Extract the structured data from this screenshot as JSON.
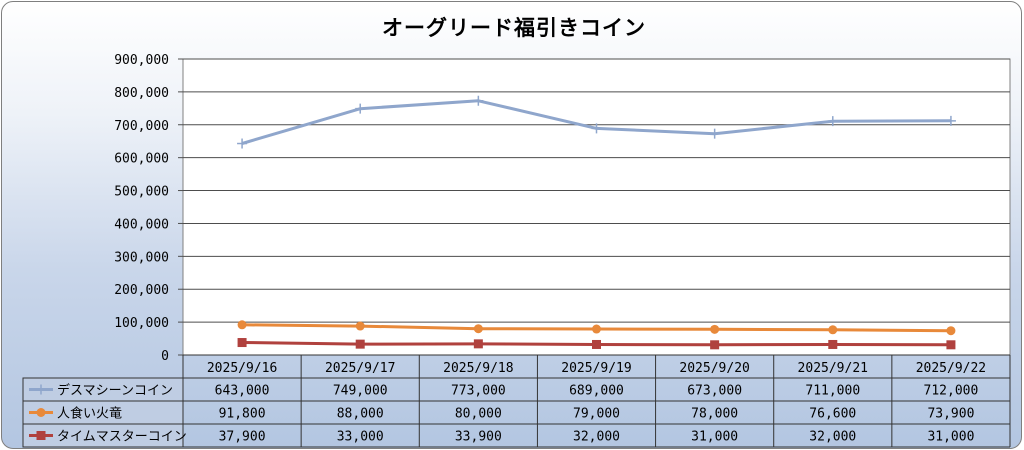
{
  "chart_data": {
    "type": "line",
    "title": "オーグリード福引きコイン",
    "categories": [
      "2025/9/16",
      "2025/9/17",
      "2025/9/18",
      "2025/9/19",
      "2025/9/20",
      "2025/9/21",
      "2025/9/22"
    ],
    "ylim": [
      0,
      900000
    ],
    "y_ticks": [
      "0",
      "100,000",
      "200,000",
      "300,000",
      "400,000",
      "500,000",
      "600,000",
      "700,000",
      "800,000",
      "900,000"
    ],
    "grid": true,
    "legend": "data-table",
    "series": [
      {
        "name": "デスマシーンコイン",
        "color": "#8fa6cc",
        "marker": "plus",
        "values": [
          643000,
          749000,
          773000,
          689000,
          673000,
          711000,
          712000
        ],
        "labels": [
          "643,000",
          "749,000",
          "773,000",
          "689,000",
          "673,000",
          "711,000",
          "712,000"
        ]
      },
      {
        "name": "人食い火竜",
        "color": "#e8893a",
        "marker": "circle",
        "values": [
          91800,
          88000,
          80000,
          79000,
          78000,
          76600,
          73900
        ],
        "labels": [
          "91,800",
          "88,000",
          "80,000",
          "79,000",
          "78,000",
          "76,600",
          "73,900"
        ]
      },
      {
        "name": "タイムマスターコイン",
        "color": "#b0413e",
        "marker": "square",
        "values": [
          37900,
          33000,
          33900,
          32000,
          31000,
          32000,
          31000
        ],
        "labels": [
          "37,900",
          "33,000",
          "33,900",
          "32,000",
          "31,000",
          "32,000",
          "31,000"
        ]
      }
    ]
  }
}
